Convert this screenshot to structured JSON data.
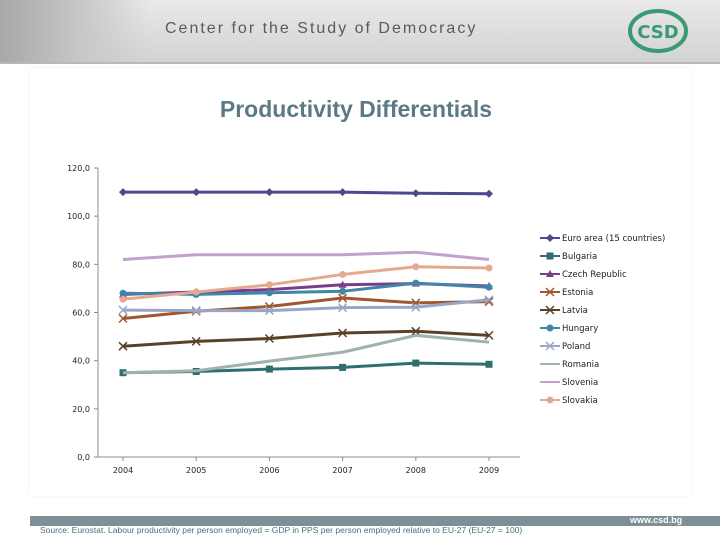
{
  "header": {
    "title": "Center for the Study of Democracy",
    "logo_text": "CSD",
    "url": "www.csd.bg"
  },
  "colors": {
    "header_text": "#5a5a5a",
    "title": "#5b7a85",
    "footer_bar": "#7f8f97",
    "source_text": "#4c6e7c",
    "logo_green": "#3a9a74"
  },
  "chart_data": {
    "type": "line",
    "title": "Productivity Differentials",
    "x": [
      "2004",
      "2005",
      "2006",
      "2007",
      "2008",
      "2009"
    ],
    "ylim": [
      0,
      120
    ],
    "yticks": [
      "0,0",
      "20,0",
      "40,0",
      "60,0",
      "80,0",
      "100,0",
      "120,0"
    ],
    "ytick_values": [
      0,
      20,
      40,
      60,
      80,
      100,
      120
    ],
    "grid": false,
    "legend_position": "right",
    "series": [
      {
        "name": "Euro area (15 countries)",
        "color": "#4a4a8c",
        "marker": "diamond",
        "values": [
          110,
          110,
          110,
          110,
          109.5,
          109.3
        ]
      },
      {
        "name": "Bulgaria",
        "color": "#2f6f6f",
        "marker": "square",
        "values": [
          35,
          35.5,
          36.5,
          37.2,
          39,
          38.5
        ]
      },
      {
        "name": "Czech Republic",
        "color": "#7b3d8a",
        "marker": "triangle",
        "values": [
          67.5,
          68.5,
          69.5,
          71.5,
          72,
          71
        ]
      },
      {
        "name": "Estonia",
        "color": "#a0562e",
        "marker": "x",
        "values": [
          57.5,
          60.5,
          62.5,
          66,
          64,
          64.5
        ]
      },
      {
        "name": "Latvia",
        "color": "#5a4228",
        "marker": "x",
        "values": [
          46,
          48,
          49.2,
          51.5,
          52.2,
          50.5
        ]
      },
      {
        "name": "Hungary",
        "color": "#3f86a8",
        "marker": "circle",
        "values": [
          68,
          67.5,
          68.2,
          68.8,
          72.2,
          70.5
        ]
      },
      {
        "name": "Poland",
        "color": "#9aa6c8",
        "marker": "x",
        "values": [
          61,
          60.8,
          60.8,
          62,
          62.2,
          65.3
        ]
      },
      {
        "name": "Romania",
        "color": "#9fb2ad",
        "marker": "none",
        "values": [
          35,
          35.8,
          39.8,
          43.5,
          50.5,
          47.7
        ]
      },
      {
        "name": "Slovenia",
        "color": "#c4a0cf",
        "marker": "none",
        "values": [
          82,
          84,
          84,
          84,
          85,
          82
        ]
      },
      {
        "name": "Slovakia",
        "color": "#e4a98f",
        "marker": "circle",
        "values": [
          65.5,
          68.5,
          71.5,
          75.8,
          79,
          78.5
        ]
      }
    ]
  },
  "source_note": "Source: Eurostat. Labour productivity per person employed = GDP in PPS per person employed relative to EU-27 (EU-27 = 100)"
}
